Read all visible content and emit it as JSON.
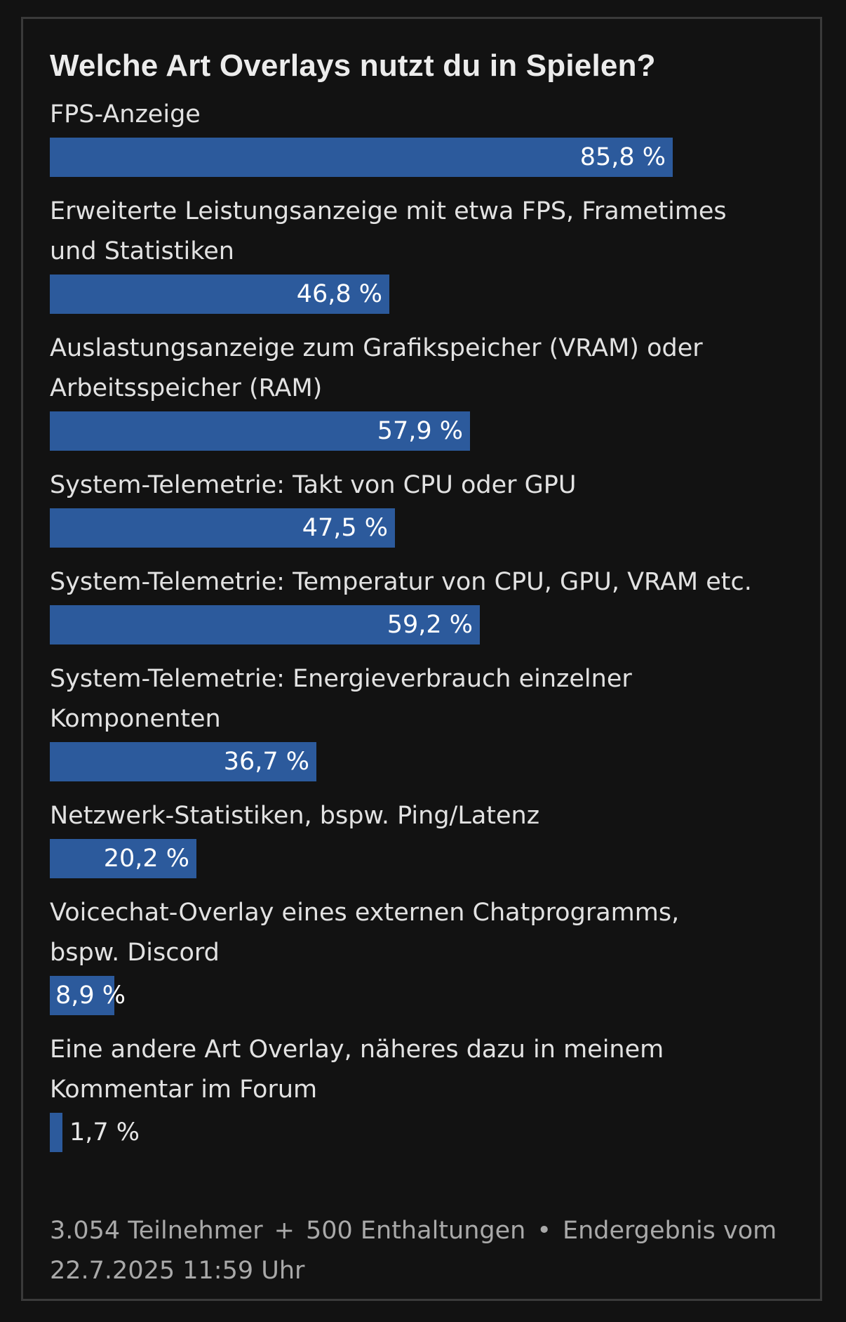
{
  "chart_data": {
    "type": "bar",
    "orientation": "horizontal",
    "title": "Welche Art Overlays nutzt du in Spielen?",
    "unit": "%",
    "categories": [
      "FPS-Anzeige",
      "Erweiterte Leistungsanzeige mit etwa FPS, Frametimes\nund Statistiken",
      "Auslastungsanzeige zum Grafikspeicher (VRAM) oder\nArbeitsspeicher (RAM)",
      "System-Telemetrie: Takt von CPU oder GPU",
      "System-Telemetrie: Temperatur von CPU, GPU, VRAM etc.",
      "System-Telemetrie: Energieverbrauch einzelner\nKomponenten",
      "Netzwerk-Statistiken, bspw. Ping/Latenz",
      "Voicechat-Overlay eines externen Chatprogramms,\nbspw. Discord",
      "Eine andere Art Overlay, näheres dazu in meinem\nKommentar im Forum"
    ],
    "values": [
      85.8,
      46.8,
      57.9,
      47.5,
      59.2,
      36.7,
      20.2,
      8.9,
      1.7
    ],
    "value_labels": [
      "85,8 %",
      "46,8 %",
      "57,9 %",
      "47,5 %",
      "59,2 %",
      "36,7 %",
      "20,2 %",
      "8,9 %",
      "1,7 %"
    ],
    "bar_color": "#2c5a9c"
  },
  "footer": {
    "participants": "3.054 Teilnehmer",
    "plus": "+",
    "abstentions": "500 Enthaltungen",
    "bullet": "•",
    "result": "Endergebnis vom 22.7.2025 11:59 Uhr"
  }
}
